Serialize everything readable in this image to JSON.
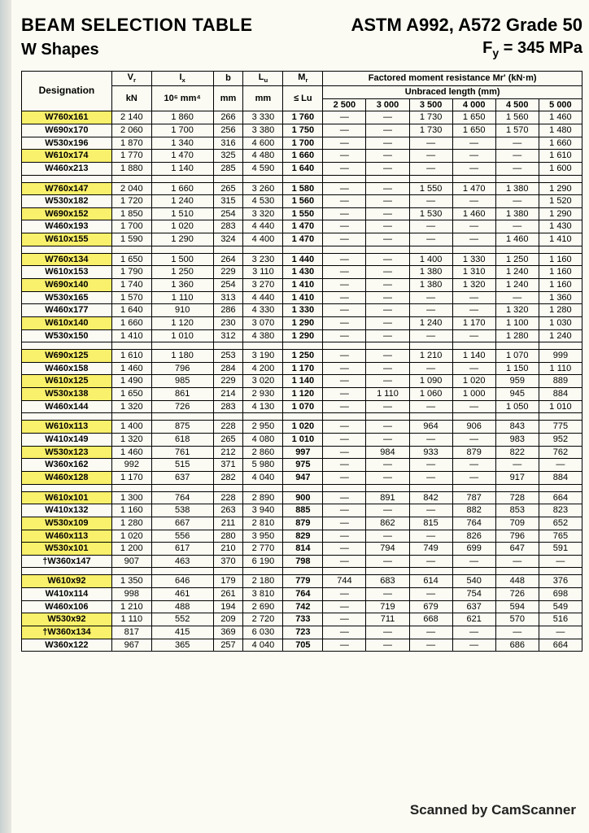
{
  "header": {
    "title_l1": "BEAM SELECTION TABLE",
    "title_l2": "W Shapes",
    "spec": "ASTM A992, A572 Grade 50",
    "fy": "Fy = 345 MPa"
  },
  "columns": {
    "desig": "Designation",
    "vr": "Vr",
    "ix": "Ix",
    "b": "b",
    "lu": "Lu",
    "mr": "Mr",
    "factored": "Factored moment resistance Mr' (kN·m)",
    "unbraced": "Unbraced length (mm)",
    "vr_u": "kN",
    "ix_u": "10⁶ mm⁴",
    "b_u": "mm",
    "lu_u": "mm",
    "le": "≤ Lu",
    "c2500": "2 500",
    "c3000": "3 000",
    "c3500": "3 500",
    "c4000": "4 000",
    "c4500": "4 500",
    "c5000": "5 000"
  },
  "footer": "Scanned by CamScanner",
  "groups": [
    [
      {
        "d": "W760x161",
        "hl": true,
        "vr": "2 140",
        "ix": "1 860",
        "b": "266",
        "lu": "3 330",
        "mr": "1 760",
        "v": [
          "—",
          "—",
          "1 730",
          "1 650",
          "1 560",
          "1 460"
        ]
      },
      {
        "d": "W690x170",
        "vr": "2 060",
        "ix": "1 700",
        "b": "256",
        "lu": "3 380",
        "mr": "1 750",
        "v": [
          "—",
          "—",
          "1 730",
          "1 650",
          "1 570",
          "1 480"
        ]
      },
      {
        "d": "W530x196",
        "vr": "1 870",
        "ix": "1 340",
        "b": "316",
        "lu": "4 600",
        "mr": "1 700",
        "v": [
          "—",
          "—",
          "—",
          "—",
          "—",
          "1 660"
        ]
      },
      {
        "d": "W610x174",
        "hl": true,
        "vr": "1 770",
        "ix": "1 470",
        "b": "325",
        "lu": "4 480",
        "mr": "1 660",
        "v": [
          "—",
          "—",
          "—",
          "—",
          "—",
          "1 610"
        ]
      },
      {
        "d": "W460x213",
        "vr": "1 880",
        "ix": "1 140",
        "b": "285",
        "lu": "4 590",
        "mr": "1 640",
        "v": [
          "—",
          "—",
          "—",
          "—",
          "—",
          "1 600"
        ]
      }
    ],
    [
      {
        "d": "W760x147",
        "hl": true,
        "vr": "2 040",
        "ix": "1 660",
        "b": "265",
        "lu": "3 260",
        "mr": "1 580",
        "v": [
          "—",
          "—",
          "1 550",
          "1 470",
          "1 380",
          "1 290"
        ]
      },
      {
        "d": "W530x182",
        "vr": "1 720",
        "ix": "1 240",
        "b": "315",
        "lu": "4 530",
        "mr": "1 560",
        "v": [
          "—",
          "—",
          "—",
          "—",
          "—",
          "1 520"
        ]
      },
      {
        "d": "W690x152",
        "hl": true,
        "vr": "1 850",
        "ix": "1 510",
        "b": "254",
        "lu": "3 320",
        "mr": "1 550",
        "v": [
          "—",
          "—",
          "1 530",
          "1 460",
          "1 380",
          "1 290"
        ]
      },
      {
        "d": "W460x193",
        "vr": "1 700",
        "ix": "1 020",
        "b": "283",
        "lu": "4 440",
        "mr": "1 470",
        "v": [
          "—",
          "—",
          "—",
          "—",
          "—",
          "1 430"
        ]
      },
      {
        "d": "W610x155",
        "hl": true,
        "vr": "1 590",
        "ix": "1 290",
        "b": "324",
        "lu": "4 400",
        "mr": "1 470",
        "v": [
          "—",
          "—",
          "—",
          "—",
          "1 460",
          "1 410"
        ]
      }
    ],
    [
      {
        "d": "W760x134",
        "hl": true,
        "vr": "1 650",
        "ix": "1 500",
        "b": "264",
        "lu": "3 230",
        "mr": "1 440",
        "v": [
          "—",
          "—",
          "1 400",
          "1 330",
          "1 250",
          "1 160"
        ]
      },
      {
        "d": "W610x153",
        "vr": "1 790",
        "ix": "1 250",
        "b": "229",
        "lu": "3 110",
        "mr": "1 430",
        "v": [
          "—",
          "—",
          "1 380",
          "1 310",
          "1 240",
          "1 160"
        ]
      },
      {
        "d": "W690x140",
        "hl": true,
        "vr": "1 740",
        "ix": "1 360",
        "b": "254",
        "lu": "3 270",
        "mr": "1 410",
        "v": [
          "—",
          "—",
          "1 380",
          "1 320",
          "1 240",
          "1 160"
        ]
      },
      {
        "d": "W530x165",
        "vr": "1 570",
        "ix": "1 110",
        "b": "313",
        "lu": "4 440",
        "mr": "1 410",
        "v": [
          "—",
          "—",
          "—",
          "—",
          "—",
          "1 360"
        ]
      },
      {
        "d": "W460x177",
        "vr": "1 640",
        "ix": "910",
        "b": "286",
        "lu": "4 330",
        "mr": "1 330",
        "v": [
          "—",
          "—",
          "—",
          "—",
          "1 320",
          "1 280"
        ]
      },
      {
        "d": "W610x140",
        "hl": true,
        "vr": "1 660",
        "ix": "1 120",
        "b": "230",
        "lu": "3 070",
        "mr": "1 290",
        "v": [
          "—",
          "—",
          "1 240",
          "1 170",
          "1 100",
          "1 030"
        ]
      },
      {
        "d": "W530x150",
        "vr": "1 410",
        "ix": "1 010",
        "b": "312",
        "lu": "4 380",
        "mr": "1 290",
        "v": [
          "—",
          "—",
          "—",
          "—",
          "1 280",
          "1 240"
        ]
      }
    ],
    [
      {
        "d": "W690x125",
        "hl": true,
        "vr": "1 610",
        "ix": "1 180",
        "b": "253",
        "lu": "3 190",
        "mr": "1 250",
        "v": [
          "—",
          "—",
          "1 210",
          "1 140",
          "1 070",
          "999"
        ]
      },
      {
        "d": "W460x158",
        "vr": "1 460",
        "ix": "796",
        "b": "284",
        "lu": "4 200",
        "mr": "1 170",
        "v": [
          "—",
          "—",
          "—",
          "—",
          "1 150",
          "1 110"
        ]
      },
      {
        "d": "W610x125",
        "hl": true,
        "vr": "1 490",
        "ix": "985",
        "b": "229",
        "lu": "3 020",
        "mr": "1 140",
        "v": [
          "—",
          "—",
          "1 090",
          "1 020",
          "959",
          "889"
        ]
      },
      {
        "d": "W530x138",
        "hl": true,
        "vr": "1 650",
        "ix": "861",
        "b": "214",
        "lu": "2 930",
        "mr": "1 120",
        "v": [
          "—",
          "1 110",
          "1 060",
          "1 000",
          "945",
          "884"
        ]
      },
      {
        "d": "W460x144",
        "vr": "1 320",
        "ix": "726",
        "b": "283",
        "lu": "4 130",
        "mr": "1 070",
        "v": [
          "—",
          "—",
          "—",
          "—",
          "1 050",
          "1 010"
        ]
      }
    ],
    [
      {
        "d": "W610x113",
        "hl": true,
        "vr": "1 400",
        "ix": "875",
        "b": "228",
        "lu": "2 950",
        "mr": "1 020",
        "v": [
          "—",
          "—",
          "964",
          "906",
          "843",
          "775"
        ]
      },
      {
        "d": "W410x149",
        "vr": "1 320",
        "ix": "618",
        "b": "265",
        "lu": "4 080",
        "mr": "1 010",
        "v": [
          "—",
          "—",
          "—",
          "—",
          "983",
          "952"
        ]
      },
      {
        "d": "W530x123",
        "hl": true,
        "vr": "1 460",
        "ix": "761",
        "b": "212",
        "lu": "2 860",
        "mr": "997",
        "v": [
          "—",
          "984",
          "933",
          "879",
          "822",
          "762"
        ]
      },
      {
        "d": "W360x162",
        "vr": "992",
        "ix": "515",
        "b": "371",
        "lu": "5 980",
        "mr": "975",
        "v": [
          "—",
          "—",
          "—",
          "—",
          "—",
          "—"
        ]
      },
      {
        "d": "W460x128",
        "hl": true,
        "vr": "1 170",
        "ix": "637",
        "b": "282",
        "lu": "4 040",
        "mr": "947",
        "v": [
          "—",
          "—",
          "—",
          "—",
          "917",
          "884"
        ]
      }
    ],
    [
      {
        "d": "W610x101",
        "hl": true,
        "vr": "1 300",
        "ix": "764",
        "b": "228",
        "lu": "2 890",
        "mr": "900",
        "v": [
          "—",
          "891",
          "842",
          "787",
          "728",
          "664"
        ]
      },
      {
        "d": "W410x132",
        "vr": "1 160",
        "ix": "538",
        "b": "263",
        "lu": "3 940",
        "mr": "885",
        "v": [
          "—",
          "—",
          "—",
          "882",
          "853",
          "823"
        ]
      },
      {
        "d": "W530x109",
        "hl": true,
        "vr": "1 280",
        "ix": "667",
        "b": "211",
        "lu": "2 810",
        "mr": "879",
        "v": [
          "—",
          "862",
          "815",
          "764",
          "709",
          "652"
        ]
      },
      {
        "d": "W460x113",
        "hl": true,
        "vr": "1 020",
        "ix": "556",
        "b": "280",
        "lu": "3 950",
        "mr": "829",
        "v": [
          "—",
          "—",
          "—",
          "826",
          "796",
          "765"
        ]
      },
      {
        "d": "W530x101",
        "hl": true,
        "vr": "1 200",
        "ix": "617",
        "b": "210",
        "lu": "2 770",
        "mr": "814",
        "v": [
          "—",
          "794",
          "749",
          "699",
          "647",
          "591"
        ]
      },
      {
        "d": "†W360x147",
        "vr": "907",
        "ix": "463",
        "b": "370",
        "lu": "6 190",
        "mr": "798",
        "v": [
          "—",
          "—",
          "—",
          "—",
          "—",
          "—"
        ]
      }
    ],
    [
      {
        "d": "W610x92",
        "hl": true,
        "vr": "1 350",
        "ix": "646",
        "b": "179",
        "lu": "2 180",
        "mr": "779",
        "v": [
          "744",
          "683",
          "614",
          "540",
          "448",
          "376"
        ]
      },
      {
        "d": "W410x114",
        "vr": "998",
        "ix": "461",
        "b": "261",
        "lu": "3 810",
        "mr": "764",
        "v": [
          "—",
          "—",
          "—",
          "754",
          "726",
          "698"
        ]
      },
      {
        "d": "W460x106",
        "vr": "1 210",
        "ix": "488",
        "b": "194",
        "lu": "2 690",
        "mr": "742",
        "v": [
          "—",
          "719",
          "679",
          "637",
          "594",
          "549"
        ]
      },
      {
        "d": "W530x92",
        "hl": true,
        "vr": "1 110",
        "ix": "552",
        "b": "209",
        "lu": "2 720",
        "mr": "733",
        "v": [
          "—",
          "711",
          "668",
          "621",
          "570",
          "516"
        ]
      },
      {
        "d": "†W360x134",
        "hl": true,
        "vr": "817",
        "ix": "415",
        "b": "369",
        "lu": "6 030",
        "mr": "723",
        "v": [
          "—",
          "—",
          "—",
          "—",
          "—",
          "—"
        ]
      },
      {
        "d": "W360x122",
        "vr": "967",
        "ix": "365",
        "b": "257",
        "lu": "4 040",
        "mr": "705",
        "v": [
          "—",
          "—",
          "—",
          "—",
          "686",
          "664"
        ]
      }
    ]
  ]
}
